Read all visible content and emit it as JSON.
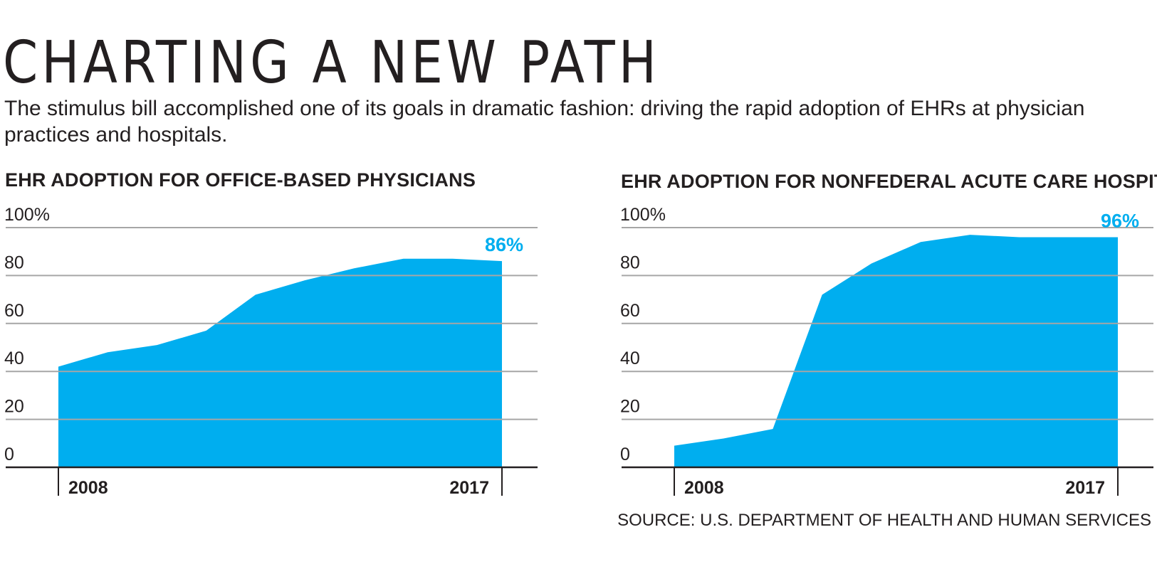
{
  "headline": "CHARTING A NEW PATH",
  "dek": "The stimulus bill accomplished one of its goals in dramatic fashion: driving the rapid adoption of EHRs at physician practices and hospitals.",
  "source": "SOURCE: U.S. DEPARTMENT OF HEALTH AND HUMAN SERVICES",
  "colors": {
    "area": "#00aeef",
    "accent_label": "#00aeef",
    "gridline": "#a6a6a6",
    "axis": "#231f20"
  },
  "chart_data": [
    {
      "type": "area",
      "title": "EHR ADOPTION FOR OFFICE-BASED PHYSICIANS",
      "x": [
        2008,
        2009,
        2010,
        2011,
        2012,
        2013,
        2014,
        2015,
        2016,
        2017
      ],
      "values": [
        42,
        48,
        51,
        57,
        72,
        78,
        83,
        87,
        87,
        86
      ],
      "yticks": [
        "100%",
        "80",
        "60",
        "40",
        "20",
        "0"
      ],
      "ytick_values": [
        100,
        80,
        60,
        40,
        20,
        0
      ],
      "xtick_labels": [
        "2008",
        "2017"
      ],
      "end_label": "86%",
      "ylim": [
        0,
        100
      ],
      "xlabel": "",
      "ylabel": ""
    },
    {
      "type": "area",
      "title": "EHR ADOPTION FOR NONFEDERAL ACUTE CARE HOSPITALS",
      "x": [
        2008,
        2009,
        2010,
        2011,
        2012,
        2013,
        2014,
        2015,
        2016,
        2017
      ],
      "values": [
        9,
        12,
        16,
        72,
        85,
        94,
        97,
        96,
        96,
        96
      ],
      "yticks": [
        "100%",
        "80",
        "60",
        "40",
        "20",
        "0"
      ],
      "ytick_values": [
        100,
        80,
        60,
        40,
        20,
        0
      ],
      "xtick_labels": [
        "2008",
        "2017"
      ],
      "end_label": "96%",
      "ylim": [
        0,
        100
      ],
      "xlabel": "",
      "ylabel": ""
    }
  ]
}
